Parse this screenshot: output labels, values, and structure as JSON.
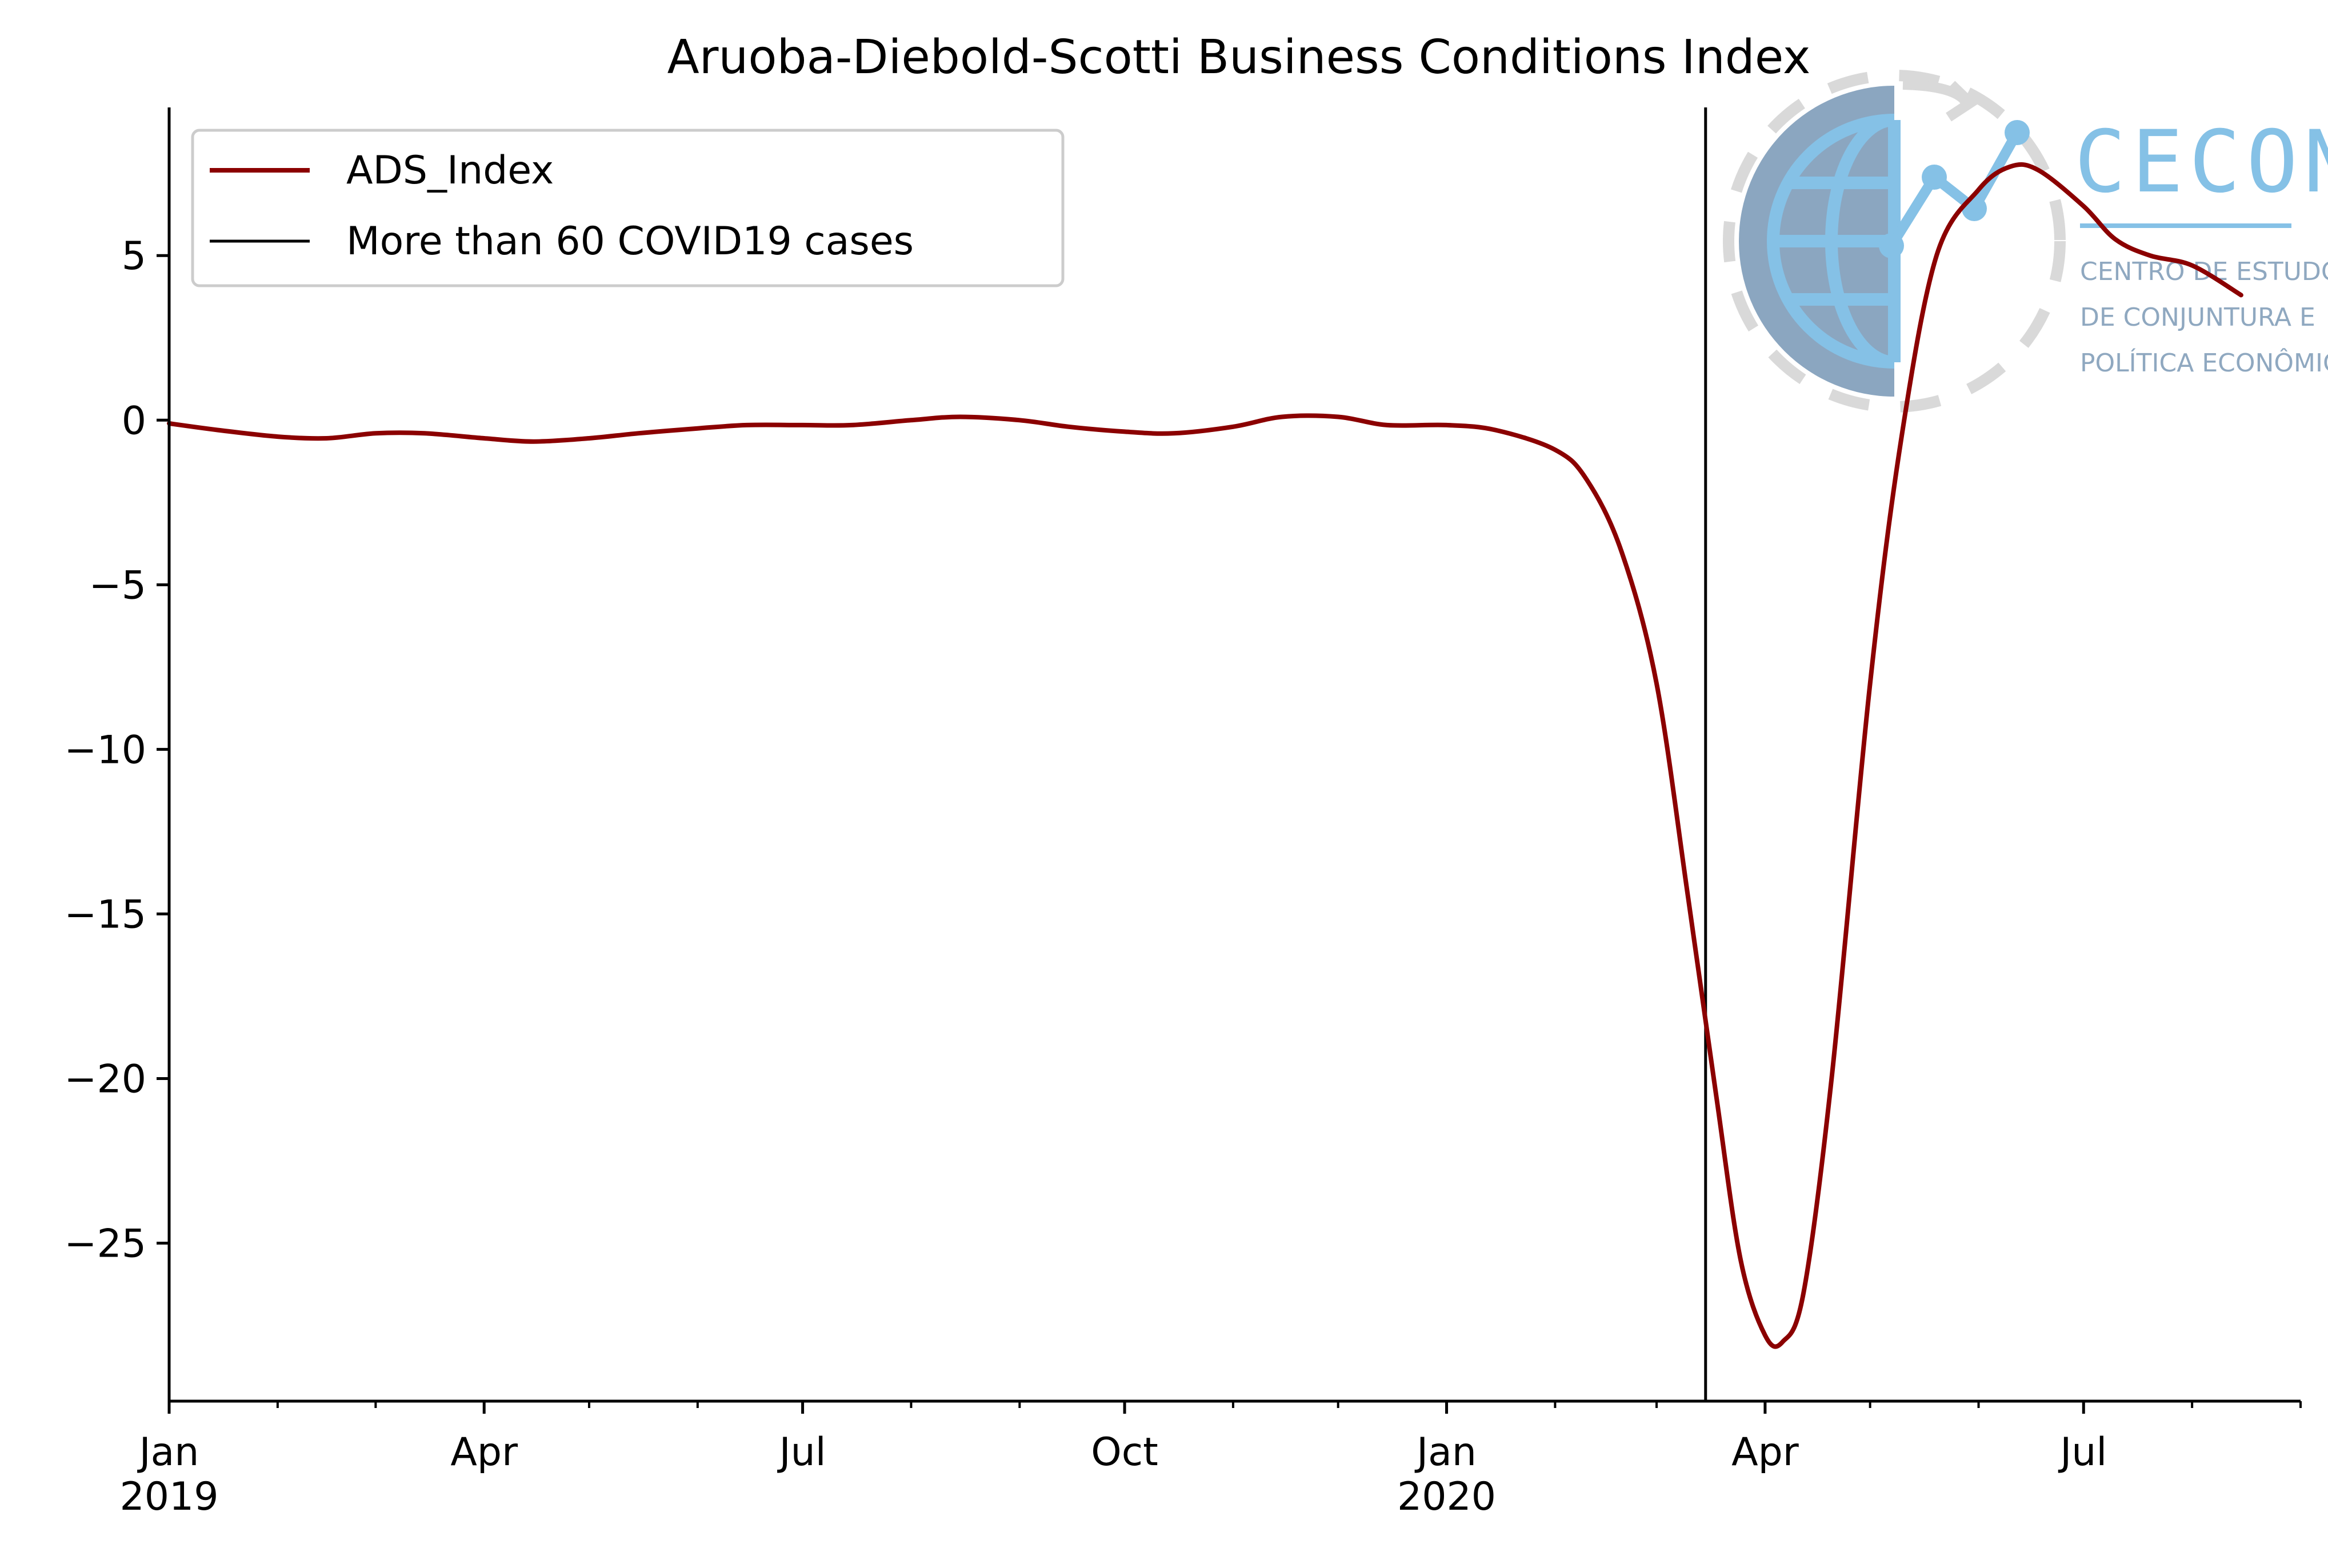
{
  "chart_data": {
    "type": "line",
    "title": "Aruoba-Diebold-Scotti Business Conditions Index",
    "xlabel": "",
    "ylabel": "",
    "xlim": [
      "2019-01-01",
      "2020-09-01"
    ],
    "ylim": [
      -29.8,
      9.5
    ],
    "grid": false,
    "legend_position": "top-left",
    "y_ticks": [
      5,
      0,
      -5,
      -10,
      -15,
      -20,
      -25
    ],
    "y_tick_labels": [
      "5",
      "0",
      "−5",
      "−10",
      "−15",
      "−20",
      "−25"
    ],
    "x_major_ticks": [
      {
        "date": "2019-01-01",
        "label": "Jan",
        "year": "2019"
      },
      {
        "date": "2019-04-01",
        "label": "Apr",
        "year": ""
      },
      {
        "date": "2019-07-01",
        "label": "Jul",
        "year": ""
      },
      {
        "date": "2019-10-01",
        "label": "Oct",
        "year": ""
      },
      {
        "date": "2020-01-01",
        "label": "Jan",
        "year": "2020"
      },
      {
        "date": "2020-04-01",
        "label": "Apr",
        "year": ""
      },
      {
        "date": "2020-07-01",
        "label": "Jul",
        "year": ""
      }
    ],
    "x_minor_ticks": [
      "2019-02-01",
      "2019-03-01",
      "2019-05-01",
      "2019-06-01",
      "2019-08-01",
      "2019-09-01",
      "2019-11-01",
      "2019-12-01",
      "2020-02-01",
      "2020-03-01",
      "2020-05-01",
      "2020-06-01",
      "2020-08-01",
      "2020-09-01"
    ],
    "series": [
      {
        "name": "ADS_Index",
        "color": "#8b0000",
        "points": [
          [
            "2019-01-01",
            -0.1
          ],
          [
            "2019-01-15",
            -0.3
          ],
          [
            "2019-02-01",
            -0.5
          ],
          [
            "2019-02-15",
            -0.55
          ],
          [
            "2019-03-01",
            -0.4
          ],
          [
            "2019-03-15",
            -0.4
          ],
          [
            "2019-04-01",
            -0.55
          ],
          [
            "2019-04-15",
            -0.65
          ],
          [
            "2019-05-01",
            -0.55
          ],
          [
            "2019-05-15",
            -0.4
          ],
          [
            "2019-06-01",
            -0.25
          ],
          [
            "2019-06-15",
            -0.15
          ],
          [
            "2019-07-01",
            -0.15
          ],
          [
            "2019-07-15",
            -0.15
          ],
          [
            "2019-08-01",
            0.0
          ],
          [
            "2019-08-15",
            0.1
          ],
          [
            "2019-09-01",
            0.0
          ],
          [
            "2019-09-15",
            -0.2
          ],
          [
            "2019-10-01",
            -0.35
          ],
          [
            "2019-10-15",
            -0.4
          ],
          [
            "2019-11-01",
            -0.2
          ],
          [
            "2019-11-15",
            0.1
          ],
          [
            "2019-12-01",
            0.1
          ],
          [
            "2019-12-15",
            -0.15
          ],
          [
            "2020-01-01",
            -0.15
          ],
          [
            "2020-01-15",
            -0.3
          ],
          [
            "2020-02-01",
            -0.9
          ],
          [
            "2020-02-10",
            -1.8
          ],
          [
            "2020-02-20",
            -4.0
          ],
          [
            "2020-03-01",
            -8.0
          ],
          [
            "2020-03-10",
            -14.5
          ],
          [
            "2020-03-18",
            -20.5
          ],
          [
            "2020-03-25",
            -25.5
          ],
          [
            "2020-04-01",
            -27.8
          ],
          [
            "2020-04-06",
            -28.0
          ],
          [
            "2020-04-12",
            -26.5
          ],
          [
            "2020-04-20",
            -20.0
          ],
          [
            "2020-05-01",
            -8.0
          ],
          [
            "2020-05-10",
            -0.5
          ],
          [
            "2020-05-20",
            5.0
          ],
          [
            "2020-06-01",
            7.0
          ],
          [
            "2020-06-10",
            7.7
          ],
          [
            "2020-06-18",
            7.6
          ],
          [
            "2020-07-01",
            6.5
          ],
          [
            "2020-07-10",
            5.5
          ],
          [
            "2020-07-20",
            5.0
          ],
          [
            "2020-08-01",
            4.7
          ],
          [
            "2020-08-15",
            3.8
          ]
        ]
      },
      {
        "name": "More than 60 COVID19 cases",
        "color": "#000000",
        "vline": "2020-03-15"
      }
    ]
  },
  "logo": {
    "name": "CECON",
    "lines": [
      "CENTRO DE ESTUDOS",
      "DE CONJUNTURA E",
      "POLÍTICA ECONÔMICA"
    ],
    "primary_color": "#85c1e6",
    "secondary_color": "#8ba6c0"
  }
}
